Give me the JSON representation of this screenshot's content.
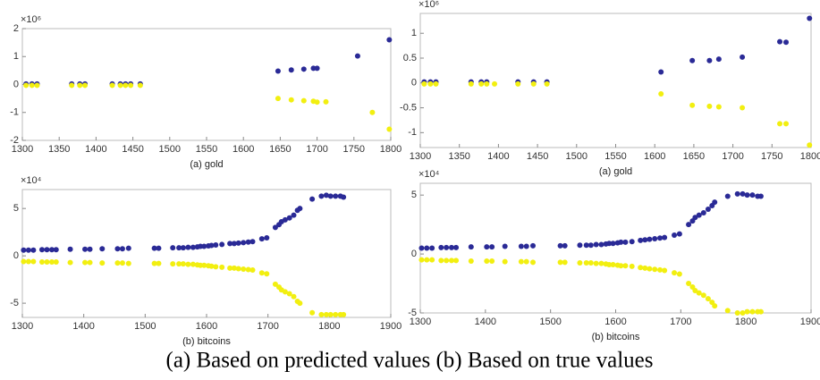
{
  "chart_data": [
    {
      "type": "scatter",
      "caption": "(a)  gold",
      "y_multiplier": "×10⁶",
      "x": [
        1305,
        1313,
        1320,
        1367,
        1378,
        1385,
        1422,
        1433,
        1440,
        1447,
        1460,
        1647,
        1665,
        1682,
        1695,
        1700,
        1712,
        1755,
        1775,
        1798
      ],
      "series": [
        {
          "color": "#2a2a96",
          "values": [
            0.02,
            0.02,
            0.02,
            0.02,
            0.02,
            0.02,
            0.02,
            0.02,
            0.02,
            0.02,
            0.02,
            0.48,
            0.52,
            0.55,
            0.58,
            0.58,
            null,
            1.02,
            null,
            1.6
          ]
        },
        {
          "color": "#f2ef10",
          "values": [
            -0.03,
            -0.03,
            -0.03,
            -0.03,
            -0.03,
            -0.03,
            -0.03,
            -0.03,
            -0.03,
            -0.03,
            -0.03,
            -0.5,
            -0.55,
            -0.58,
            -0.6,
            -0.63,
            -0.62,
            null,
            -1.0,
            -1.6
          ]
        }
      ],
      "xlim": [
        1300,
        1800
      ],
      "xticks": [
        1300,
        1350,
        1400,
        1450,
        1500,
        1550,
        1600,
        1650,
        1700,
        1750,
        1800
      ],
      "ylim": [
        -2,
        2
      ],
      "yticks": [
        2,
        1,
        0,
        -1,
        -2
      ]
    },
    {
      "type": "scatter",
      "caption": "(a)  gold",
      "y_multiplier": "×10⁶",
      "x": [
        1305,
        1313,
        1320,
        1365,
        1378,
        1385,
        1395,
        1425,
        1445,
        1462,
        1608,
        1648,
        1670,
        1682,
        1712,
        1760,
        1768,
        1798
      ],
      "series": [
        {
          "color": "#2a2a96",
          "values": [
            0.02,
            0.02,
            0.02,
            0.02,
            0.02,
            0.02,
            null,
            0.02,
            0.02,
            0.02,
            0.22,
            0.45,
            0.45,
            0.48,
            0.52,
            0.83,
            0.82,
            1.3
          ]
        },
        {
          "color": "#f2ef10",
          "values": [
            -0.02,
            -0.02,
            -0.02,
            -0.02,
            -0.02,
            -0.02,
            -0.02,
            -0.02,
            -0.02,
            -0.02,
            -0.22,
            -0.45,
            -0.47,
            -0.48,
            -0.5,
            -0.82,
            -0.82,
            -1.25
          ]
        }
      ],
      "xlim": [
        1300,
        1800
      ],
      "xticks": [
        1300,
        1350,
        1400,
        1450,
        1500,
        1550,
        1600,
        1650,
        1700,
        1750,
        1800
      ],
      "ylim": [
        -1.3,
        1.4
      ],
      "yticks": [
        1,
        0.5,
        0,
        -0.5,
        -1
      ]
    },
    {
      "type": "scatter",
      "caption": "(b)  bitcoins",
      "y_multiplier": "×10⁴",
      "x": [
        1302,
        1310,
        1318,
        1332,
        1340,
        1348,
        1355,
        1378,
        1402,
        1410,
        1430,
        1455,
        1463,
        1473,
        1515,
        1522,
        1545,
        1555,
        1562,
        1570,
        1578,
        1585,
        1590,
        1596,
        1603,
        1608,
        1615,
        1625,
        1638,
        1645,
        1652,
        1660,
        1668,
        1675,
        1690,
        1698,
        1712,
        1718,
        1722,
        1728,
        1735,
        1742,
        1748,
        1752,
        1772,
        1787,
        1795,
        1802,
        1810,
        1818,
        1823
      ],
      "series": [
        {
          "color": "#2a2a96",
          "values": [
            0.6,
            0.6,
            0.6,
            0.65,
            0.65,
            0.65,
            0.65,
            0.7,
            0.7,
            0.7,
            0.75,
            0.75,
            0.75,
            0.8,
            0.8,
            0.8,
            0.85,
            0.85,
            0.85,
            0.9,
            0.9,
            0.95,
            1.0,
            1.0,
            1.05,
            1.1,
            1.15,
            1.2,
            1.3,
            1.3,
            1.35,
            1.4,
            1.45,
            1.5,
            1.8,
            1.9,
            3.0,
            3.3,
            3.6,
            3.8,
            4.0,
            4.3,
            4.8,
            5.0,
            6.0,
            6.3,
            6.4,
            6.3,
            6.3,
            6.3,
            6.2
          ]
        },
        {
          "color": "#f2ef10",
          "values": [
            -0.6,
            -0.6,
            -0.6,
            -0.65,
            -0.65,
            -0.65,
            -0.65,
            -0.7,
            -0.7,
            -0.7,
            -0.75,
            -0.75,
            -0.75,
            -0.8,
            -0.8,
            -0.8,
            -0.85,
            -0.85,
            -0.85,
            -0.9,
            -0.9,
            -0.95,
            -1.0,
            -1.0,
            -1.05,
            -1.1,
            -1.15,
            -1.2,
            -1.3,
            -1.3,
            -1.35,
            -1.4,
            -1.45,
            -1.5,
            -1.8,
            -1.9,
            -3.0,
            -3.3,
            -3.6,
            -3.8,
            -4.0,
            -4.3,
            -4.8,
            -5.0,
            -6.0,
            -6.2,
            -6.2,
            -6.2,
            -6.2,
            -6.2,
            -6.2
          ]
        }
      ],
      "xlim": [
        1300,
        1900
      ],
      "xticks": [
        1300,
        1400,
        1500,
        1600,
        1700,
        1800,
        1900
      ],
      "ylim": [
        -6.5,
        7
      ],
      "yticks": [
        5,
        0,
        -5
      ]
    },
    {
      "type": "scatter",
      "caption": "(b)  bitcoins",
      "y_multiplier": "×10⁴",
      "x": [
        1302,
        1310,
        1318,
        1332,
        1340,
        1348,
        1355,
        1378,
        1402,
        1410,
        1430,
        1455,
        1463,
        1473,
        1515,
        1522,
        1545,
        1555,
        1562,
        1570,
        1578,
        1585,
        1590,
        1596,
        1603,
        1608,
        1615,
        1625,
        1638,
        1645,
        1652,
        1660,
        1668,
        1675,
        1690,
        1698,
        1712,
        1718,
        1722,
        1728,
        1735,
        1742,
        1748,
        1752,
        1772,
        1787,
        1795,
        1802,
        1810,
        1818,
        1823
      ],
      "series": [
        {
          "color": "#2a2a96",
          "values": [
            0.5,
            0.5,
            0.5,
            0.55,
            0.55,
            0.55,
            0.55,
            0.6,
            0.6,
            0.6,
            0.65,
            0.65,
            0.65,
            0.7,
            0.7,
            0.7,
            0.75,
            0.75,
            0.75,
            0.8,
            0.8,
            0.85,
            0.9,
            0.9,
            0.95,
            1.0,
            1.0,
            1.05,
            1.15,
            1.2,
            1.25,
            1.3,
            1.35,
            1.4,
            1.6,
            1.7,
            2.5,
            2.8,
            3.1,
            3.3,
            3.5,
            3.8,
            4.1,
            4.4,
            4.9,
            5.1,
            5.1,
            5.0,
            5.0,
            4.9,
            4.9
          ]
        },
        {
          "color": "#f2ef10",
          "values": [
            -0.5,
            -0.5,
            -0.5,
            -0.55,
            -0.55,
            -0.55,
            -0.55,
            -0.6,
            -0.6,
            -0.6,
            -0.65,
            -0.65,
            -0.65,
            -0.7,
            -0.7,
            -0.7,
            -0.75,
            -0.75,
            -0.75,
            -0.8,
            -0.8,
            -0.85,
            -0.9,
            -0.9,
            -0.95,
            -1.0,
            -1.0,
            -1.05,
            -1.15,
            -1.2,
            -1.25,
            -1.3,
            -1.35,
            -1.4,
            -1.6,
            -1.7,
            -2.5,
            -2.8,
            -3.1,
            -3.3,
            -3.5,
            -3.8,
            -4.1,
            -4.4,
            -4.8,
            -5.0,
            -5.0,
            -4.9,
            -4.9,
            -4.9,
            -4.9
          ]
        }
      ],
      "xlim": [
        1300,
        1900
      ],
      "xticks": [
        1300,
        1400,
        1500,
        1600,
        1700,
        1800,
        1900
      ],
      "ylim": [
        -5,
        6
      ],
      "yticks": [
        5,
        0,
        -5
      ]
    }
  ],
  "caption": "(a) Based on predicted values  (b) Based on true values"
}
